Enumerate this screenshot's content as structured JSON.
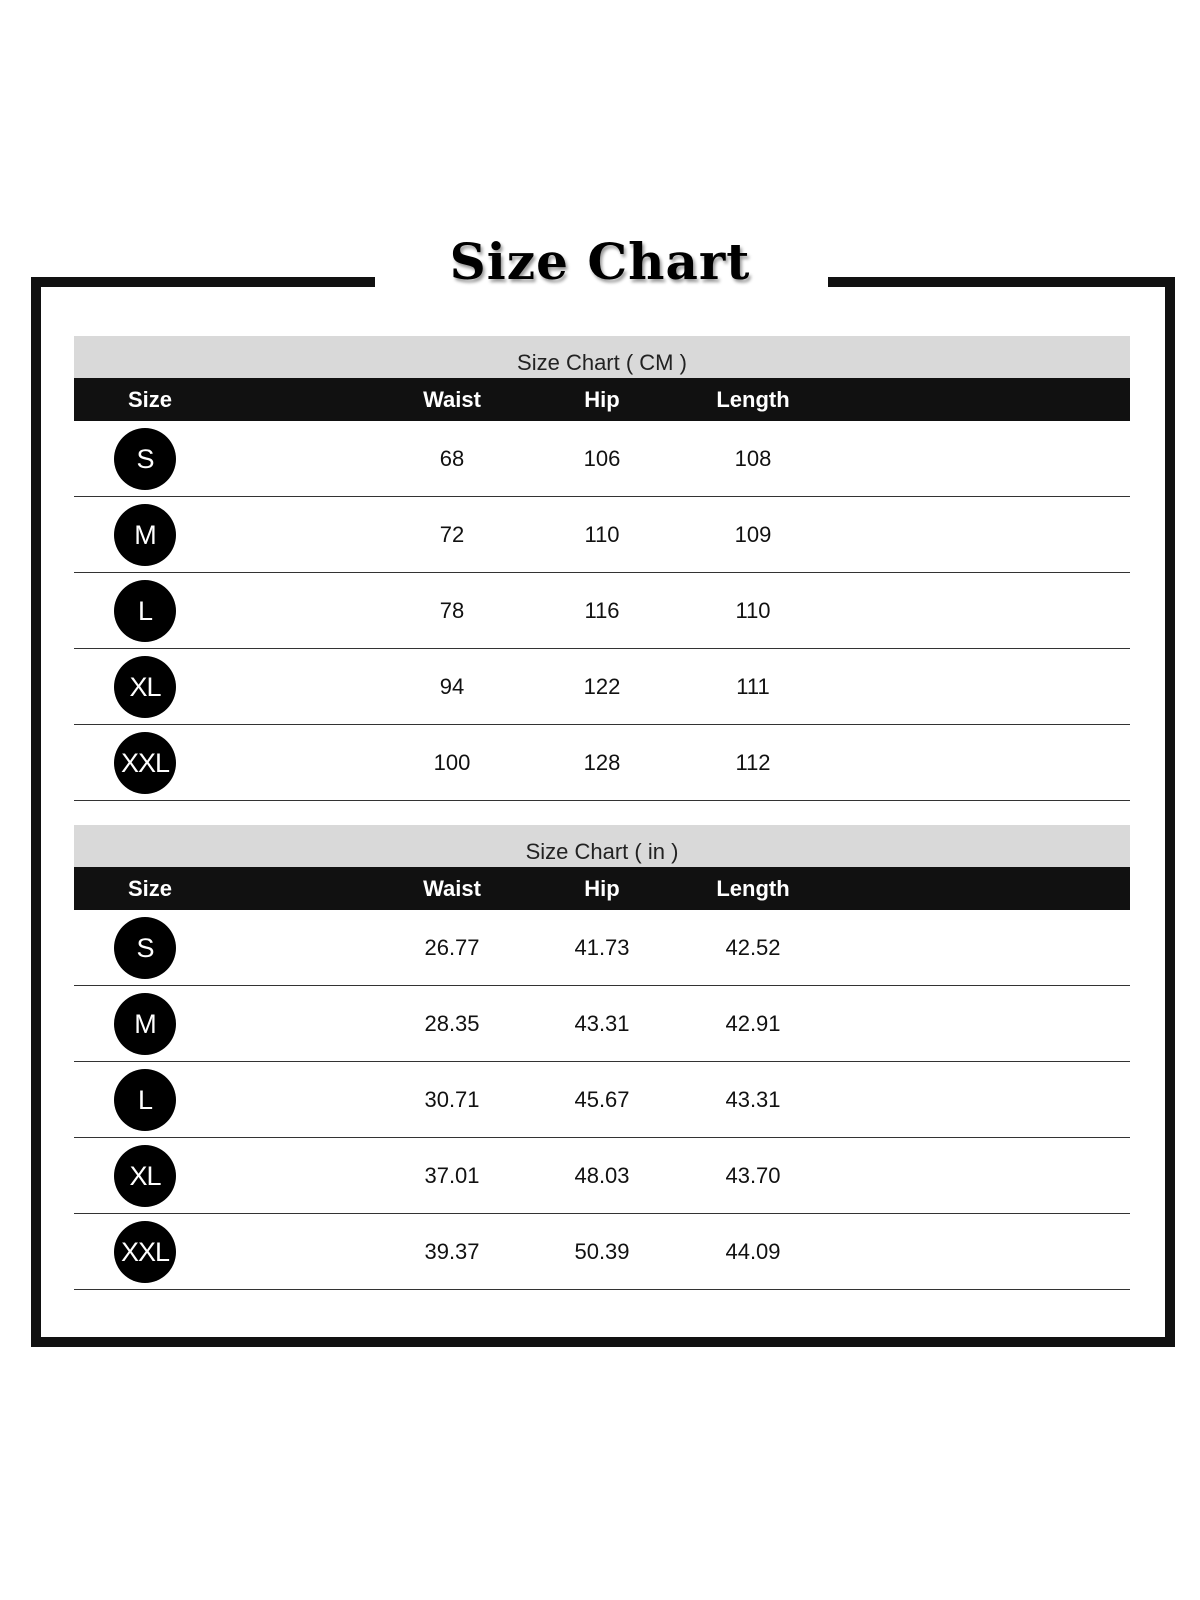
{
  "title": "Size Chart",
  "columns": [
    "Size",
    "Waist",
    "Hip",
    "Length"
  ],
  "tables": [
    {
      "caption": "Size Chart ( CM )",
      "rows": [
        {
          "size": "S",
          "waist": "68",
          "hip": "106",
          "length": "108"
        },
        {
          "size": "M",
          "waist": "72",
          "hip": "110",
          "length": "109"
        },
        {
          "size": "L",
          "waist": "78",
          "hip": "116",
          "length": "110"
        },
        {
          "size": "XL",
          "waist": "94",
          "hip": "122",
          "length": "111"
        },
        {
          "size": "XXL",
          "waist": "100",
          "hip": "128",
          "length": "112"
        }
      ]
    },
    {
      "caption": "Size Chart ( in )",
      "rows": [
        {
          "size": "S",
          "waist": "26.77",
          "hip": "41.73",
          "length": "42.52"
        },
        {
          "size": "M",
          "waist": "28.35",
          "hip": "43.31",
          "length": "42.91"
        },
        {
          "size": "L",
          "waist": "30.71",
          "hip": "45.67",
          "length": "43.31"
        },
        {
          "size": "XL",
          "waist": "37.01",
          "hip": "48.03",
          "length": "43.70"
        },
        {
          "size": "XXL",
          "waist": "39.37",
          "hip": "50.39",
          "length": "44.09"
        }
      ]
    }
  ]
}
